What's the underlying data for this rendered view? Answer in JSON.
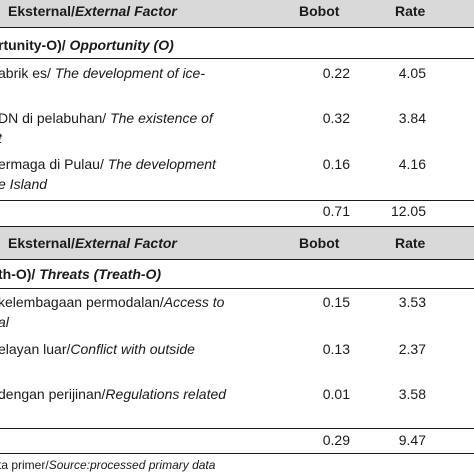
{
  "table1": {
    "header": {
      "factor_plain": "Eksternal/",
      "factor_italic": "External Factor",
      "bobot": "Bobot",
      "rate": "Rate"
    },
    "section": {
      "plain": "rtunity-O)/ ",
      "italic": "Opportunity (O)"
    },
    "rows": [
      {
        "line1_plain": "abrik es/ ",
        "line1_italic": "The development of ice-",
        "line2_plain": "",
        "line2_italic": "",
        "bobot": "0.22",
        "rate": "4.05"
      },
      {
        "line1_plain": "DN di pelabuhan/ ",
        "line1_italic": "The existence of",
        "line2_plain": "",
        "line2_italic": "t",
        "bobot": "0.32",
        "rate": "3.84"
      },
      {
        "line1_plain": "ermaga di Pulau/ ",
        "line1_italic": "The development",
        "line2_plain": "",
        "line2_italic": "e Island",
        "bobot": "0.16",
        "rate": "4.16"
      }
    ],
    "total": {
      "bobot": "0.71",
      "rate": "12.05"
    }
  },
  "table2": {
    "header": {
      "factor_plain": "Eksternal/",
      "factor_italic": "External Factor",
      "bobot": "Bobot",
      "rate": "Rate"
    },
    "section": {
      "plain": "th-O)/ ",
      "italic": "Threats (Treath-O)"
    },
    "rows": [
      {
        "line1_plain": "kelembagaan permodalan/",
        "line1_italic": "Access to",
        "line2_plain": "",
        "line2_italic": "al",
        "bobot": "0.15",
        "rate": "3.53"
      },
      {
        "line1_plain": "elayan luar/",
        "line1_italic": "Conflict with outside",
        "line2_plain": "",
        "line2_italic": "",
        "bobot": "0.13",
        "rate": "2.37"
      },
      {
        "line1_plain": "dengan perijinan/",
        "line1_italic": "Regulations related",
        "line2_plain": "",
        "line2_italic": "",
        "bobot": "0.01",
        "rate": "3.58"
      }
    ],
    "total": {
      "bobot": "0.29",
      "rate": "9.47"
    }
  },
  "footnote": {
    "plain": "ta primer/",
    "italic": "Source:processed primary data"
  }
}
